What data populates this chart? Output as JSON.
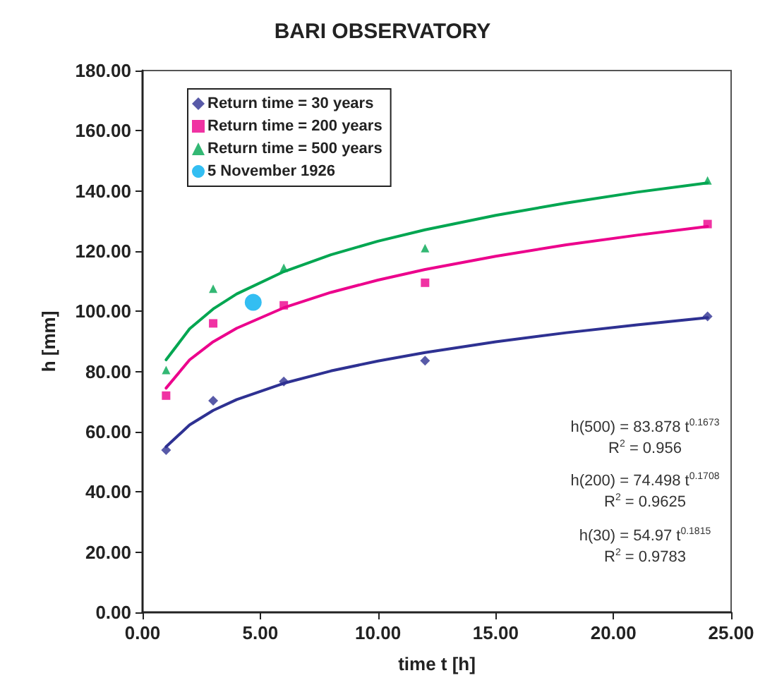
{
  "chart_data": {
    "type": "scatter",
    "title": "BARI OBSERVATORY",
    "xlabel": "time t [h]",
    "ylabel": "h [mm]",
    "xlim": [
      0,
      25
    ],
    "xticks": [
      {
        "value": 0,
        "label": "0.00"
      },
      {
        "value": 5,
        "label": "5.00"
      },
      {
        "value": 10,
        "label": "10.00"
      },
      {
        "value": 15,
        "label": "15.00"
      },
      {
        "value": 20,
        "label": "20.00"
      },
      {
        "value": 25,
        "label": "25.00"
      }
    ],
    "ylim": [
      0,
      180
    ],
    "yticks": [
      {
        "value": 0,
        "label": "0.00"
      },
      {
        "value": 20,
        "label": "20.00"
      },
      {
        "value": 40,
        "label": "40.00"
      },
      {
        "value": 60,
        "label": "60.00"
      },
      {
        "value": 80,
        "label": "80.00"
      },
      {
        "value": 100,
        "label": "100.00"
      },
      {
        "value": 120,
        "label": "120.00"
      },
      {
        "value": 140,
        "label": "140.00"
      },
      {
        "value": 160,
        "label": "160.00"
      },
      {
        "value": 180,
        "label": "180.00"
      }
    ],
    "grid": false,
    "legend": "top left",
    "series": [
      {
        "name": "Return time = 30 years",
        "color": "#2e3192",
        "marker": "diamond",
        "x": [
          1,
          3,
          6,
          12,
          24
        ],
        "values": [
          53.9,
          70.3,
          76.7,
          83.6,
          98.3
        ]
      },
      {
        "name": "Return time = 200 years",
        "color": "#ec008c",
        "marker": "square",
        "x": [
          1,
          3,
          6,
          12,
          24
        ],
        "values": [
          72,
          96,
          102,
          109.5,
          129
        ]
      },
      {
        "name": "Return time = 500 years",
        "color": "#00a651",
        "marker": "triangle",
        "x": [
          1,
          3,
          6,
          12,
          24
        ],
        "values": [
          80.5,
          107.5,
          114.5,
          121,
          143.5
        ]
      },
      {
        "name": "5 November 1926",
        "color": "#00aeef",
        "marker": "circle",
        "x": [
          4.7
        ],
        "values": [
          103
        ]
      },
      {
        "type": "line",
        "color": "#2e3192",
        "marker": "none",
        "line_style": "solid",
        "x": [
          1,
          2,
          3,
          4,
          6,
          8,
          10,
          12,
          15,
          18,
          21,
          24
        ],
        "values": [
          55,
          62.3,
          67.1,
          70.7,
          76.1,
          80.2,
          83.5,
          86.3,
          89.9,
          92.9,
          95.5,
          97.9
        ]
      },
      {
        "type": "line",
        "color": "#ec008c",
        "marker": "none",
        "line_style": "solid",
        "x": [
          1,
          2,
          3,
          4,
          6,
          8,
          10,
          12,
          15,
          18,
          21,
          24
        ],
        "values": [
          74.5,
          83.9,
          89.9,
          94.4,
          101.2,
          106.3,
          110.4,
          113.9,
          118.3,
          122.1,
          125.3,
          128.2
        ]
      },
      {
        "type": "line",
        "color": "#00a651",
        "marker": "none",
        "line_style": "solid",
        "x": [
          1,
          2,
          3,
          4,
          6,
          8,
          10,
          12,
          15,
          18,
          21,
          24
        ],
        "values": [
          83.9,
          94.2,
          100.8,
          105.8,
          113.2,
          118.8,
          123.3,
          127.1,
          131.9,
          136,
          139.6,
          142.7
        ]
      }
    ],
    "annotations": [
      "h(500) = 83.878 t$^{0.1673}$",
      "R$^{2}$ = 0.956",
      "h(200) = 74.498 t$^{0.1708}$",
      "R$^{2}$ = 0.9625",
      "h(30) = 54.97 t$^{0.1815}$",
      "R$^{2}$ = 0.9783"
    ]
  }
}
